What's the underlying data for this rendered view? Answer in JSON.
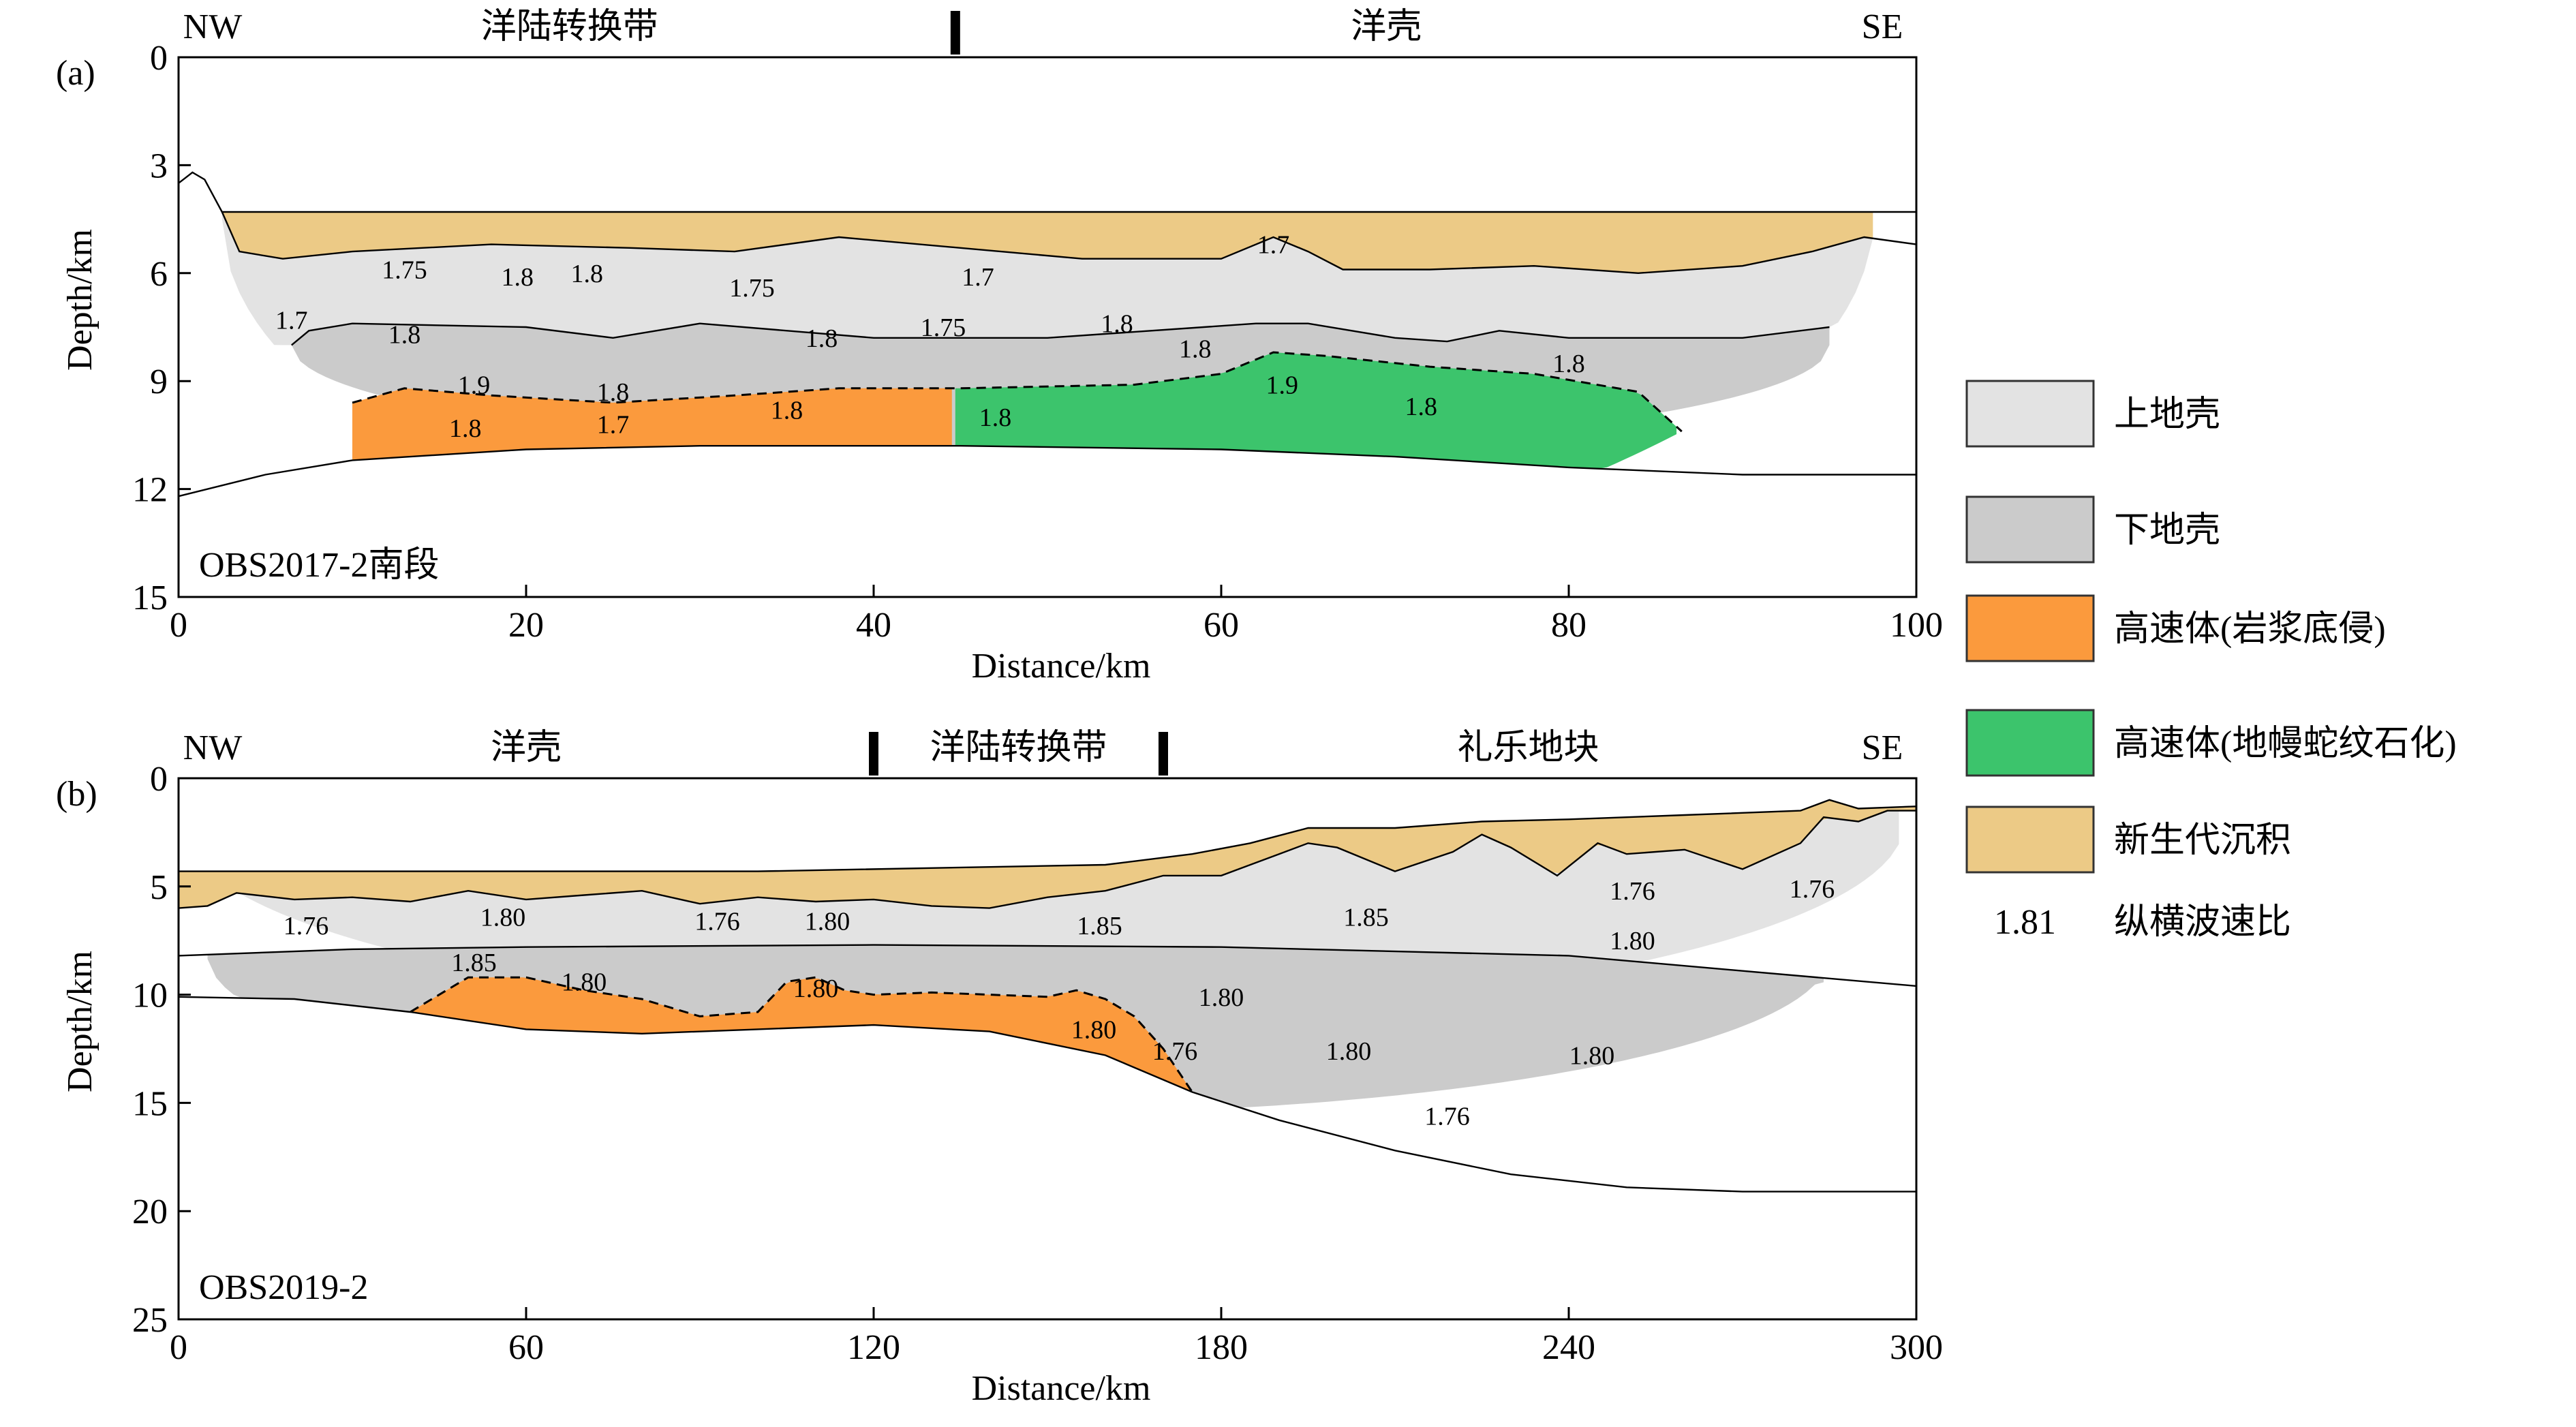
{
  "legend": [
    {
      "key": "upper",
      "label": "上地壳",
      "color": "#e3e3e3"
    },
    {
      "key": "lower",
      "label": "下地壳",
      "color": "#cbcbcb"
    },
    {
      "key": "hv1",
      "label": "高速体(岩浆底侵)",
      "color": "#fb9a3d"
    },
    {
      "key": "hv2",
      "label": "高速体(地幔蛇纹石化)",
      "color": "#3cc46c"
    },
    {
      "key": "sed",
      "label": "新生代沉积",
      "color": "#ecca86"
    }
  ],
  "legend_ratio": {
    "sample": "1.81",
    "label": "纵横波速比"
  },
  "chart_data": [
    {
      "type": "area",
      "panel": "(a)",
      "profile_label": "OBS2017-2南段",
      "xlabel": "Distance/km",
      "ylabel": "Depth/km",
      "xlim": [
        0,
        100
      ],
      "ylim": [
        15,
        0
      ],
      "xticks": [
        0,
        20,
        40,
        60,
        80,
        100
      ],
      "yticks": [
        0,
        3,
        6,
        9,
        12,
        15
      ],
      "direction_left": "NW",
      "direction_right": "SE",
      "zones": [
        {
          "label": "洋陆转换带",
          "x": 22.5
        },
        {
          "label": "洋壳",
          "x": 69.5
        }
      ],
      "zone_markers": [
        44.7
      ],
      "boundaries": {
        "seafloor": [
          [
            0,
            3.5
          ],
          [
            0.8,
            3.2
          ],
          [
            1.5,
            3.4
          ],
          [
            2.5,
            4.3
          ],
          [
            4,
            4.3
          ],
          [
            30,
            4.3
          ],
          [
            60,
            4.3
          ],
          [
            80,
            4.3
          ],
          [
            100,
            4.3
          ]
        ],
        "basement": [
          [
            2.5,
            4.3
          ],
          [
            3.5,
            5.4
          ],
          [
            6,
            5.6
          ],
          [
            10,
            5.4
          ],
          [
            18,
            5.2
          ],
          [
            26,
            5.3
          ],
          [
            32,
            5.4
          ],
          [
            38,
            5.0
          ],
          [
            45,
            5.3
          ],
          [
            52,
            5.6
          ],
          [
            60,
            5.6
          ],
          [
            63,
            5.0
          ],
          [
            65,
            5.4
          ],
          [
            67,
            5.9
          ],
          [
            72,
            5.9
          ],
          [
            78,
            5.8
          ],
          [
            84,
            6.0
          ],
          [
            90,
            5.8
          ],
          [
            94,
            5.4
          ],
          [
            97,
            5.0
          ],
          [
            100,
            5.2
          ]
        ],
        "upper_lower": [
          [
            6.5,
            8.0
          ],
          [
            7.5,
            7.6
          ],
          [
            10,
            7.4
          ],
          [
            20,
            7.5
          ],
          [
            25,
            7.8
          ],
          [
            30,
            7.4
          ],
          [
            40,
            7.8
          ],
          [
            50,
            7.8
          ],
          [
            62,
            7.4
          ],
          [
            65,
            7.4
          ],
          [
            70,
            7.8
          ],
          [
            73,
            7.9
          ],
          [
            76,
            7.6
          ],
          [
            80,
            7.8
          ],
          [
            90,
            7.8
          ],
          [
            95,
            7.5
          ]
        ],
        "moho": [
          [
            0,
            12.2
          ],
          [
            5,
            11.6
          ],
          [
            10,
            11.2
          ],
          [
            20,
            10.9
          ],
          [
            30,
            10.8
          ],
          [
            45,
            10.8
          ],
          [
            60,
            10.9
          ],
          [
            70,
            11.1
          ],
          [
            80,
            11.4
          ],
          [
            90,
            11.6
          ],
          [
            100,
            11.6
          ]
        ],
        "hv_top": [
          [
            10,
            9.6
          ],
          [
            13,
            9.2
          ],
          [
            18,
            9.4
          ],
          [
            25,
            9.6
          ],
          [
            32,
            9.4
          ],
          [
            38,
            9.2
          ],
          [
            45,
            9.2
          ],
          [
            55,
            9.1
          ],
          [
            60,
            8.8
          ],
          [
            63,
            8.2
          ],
          [
            66,
            8.3
          ],
          [
            72,
            8.6
          ],
          [
            78,
            8.8
          ],
          [
            84,
            9.3
          ],
          [
            86.5,
            10.4
          ]
        ]
      },
      "ratios": [
        {
          "v": "1.75",
          "x": 13,
          "y": 5.9
        },
        {
          "v": "1.8",
          "x": 19.5,
          "y": 6.1
        },
        {
          "v": "1.8",
          "x": 23.5,
          "y": 6.0
        },
        {
          "v": "1.75",
          "x": 33,
          "y": 6.4
        },
        {
          "v": "1.7",
          "x": 46,
          "y": 6.1
        },
        {
          "v": "1.7",
          "x": 63,
          "y": 5.2
        },
        {
          "v": "1.7",
          "x": 6.5,
          "y": 7.3
        },
        {
          "v": "1.8",
          "x": 13,
          "y": 7.7
        },
        {
          "v": "1.8",
          "x": 37,
          "y": 7.8
        },
        {
          "v": "1.75",
          "x": 44,
          "y": 7.5
        },
        {
          "v": "1.8",
          "x": 54,
          "y": 7.4
        },
        {
          "v": "1.8",
          "x": 58.5,
          "y": 8.1
        },
        {
          "v": "1.8",
          "x": 80,
          "y": 8.5
        },
        {
          "v": "1.9",
          "x": 17,
          "y": 9.1
        },
        {
          "v": "1.8",
          "x": 25,
          "y": 9.3
        },
        {
          "v": "1.9",
          "x": 63.5,
          "y": 9.1
        },
        {
          "v": "1.8",
          "x": 71.5,
          "y": 9.7
        },
        {
          "v": "1.8",
          "x": 16.5,
          "y": 10.3
        },
        {
          "v": "1.7",
          "x": 25,
          "y": 10.2
        },
        {
          "v": "1.8",
          "x": 35,
          "y": 9.8
        },
        {
          "v": "1.8",
          "x": 47,
          "y": 10.0
        }
      ]
    },
    {
      "type": "area",
      "panel": "(b)",
      "profile_label": "OBS2019-2",
      "xlabel": "Distance/km",
      "ylabel": "Depth/km",
      "xlim": [
        0,
        300
      ],
      "ylim": [
        25,
        0
      ],
      "xticks": [
        0,
        60,
        120,
        180,
        240,
        300
      ],
      "yticks": [
        0,
        5,
        10,
        15,
        20,
        25
      ],
      "direction_left": "NW",
      "direction_right": "SE",
      "zones": [
        {
          "label": "洋壳",
          "x": 60
        },
        {
          "label": "洋陆转换带",
          "x": 145
        },
        {
          "label": "礼乐地块",
          "x": 233
        }
      ],
      "zone_markers": [
        120,
        170
      ],
      "boundaries": {
        "seafloor": [
          [
            0,
            4.3
          ],
          [
            100,
            4.3
          ],
          [
            140,
            4.1
          ],
          [
            160,
            4.0
          ],
          [
            175,
            3.5
          ],
          [
            185,
            3.0
          ],
          [
            195,
            2.3
          ],
          [
            210,
            2.3
          ],
          [
            225,
            2.0
          ],
          [
            240,
            1.9
          ],
          [
            260,
            1.7
          ],
          [
            280,
            1.5
          ],
          [
            285,
            1.0
          ],
          [
            290,
            1.4
          ],
          [
            300,
            1.3
          ]
        ],
        "basement": [
          [
            0,
            6.0
          ],
          [
            5,
            5.9
          ],
          [
            10,
            5.3
          ],
          [
            20,
            5.6
          ],
          [
            30,
            5.5
          ],
          [
            40,
            5.7
          ],
          [
            50,
            5.2
          ],
          [
            60,
            5.6
          ],
          [
            70,
            5.4
          ],
          [
            80,
            5.2
          ],
          [
            90,
            5.8
          ],
          [
            100,
            5.5
          ],
          [
            110,
            5.7
          ],
          [
            120,
            5.6
          ],
          [
            130,
            5.9
          ],
          [
            140,
            6.0
          ],
          [
            150,
            5.5
          ],
          [
            160,
            5.2
          ],
          [
            170,
            4.5
          ],
          [
            180,
            4.5
          ],
          [
            190,
            3.5
          ],
          [
            195,
            3.0
          ],
          [
            200,
            3.2
          ],
          [
            210,
            4.3
          ],
          [
            220,
            3.4
          ],
          [
            225,
            2.6
          ],
          [
            230,
            3.2
          ],
          [
            238,
            4.5
          ],
          [
            245,
            3.0
          ],
          [
            250,
            3.5
          ],
          [
            260,
            3.3
          ],
          [
            270,
            4.2
          ],
          [
            280,
            3.0
          ],
          [
            284,
            1.8
          ],
          [
            290,
            2.0
          ],
          [
            295,
            1.5
          ],
          [
            300,
            1.5
          ]
        ],
        "upper_lower": [
          [
            0,
            8.2
          ],
          [
            30,
            7.9
          ],
          [
            60,
            7.8
          ],
          [
            120,
            7.7
          ],
          [
            180,
            7.8
          ],
          [
            240,
            8.2
          ],
          [
            270,
            8.9
          ],
          [
            300,
            9.6
          ]
        ],
        "moho": [
          [
            0,
            10.1
          ],
          [
            20,
            10.2
          ],
          [
            40,
            10.8
          ],
          [
            60,
            11.6
          ],
          [
            80,
            11.8
          ],
          [
            100,
            11.6
          ],
          [
            120,
            11.4
          ],
          [
            140,
            11.7
          ],
          [
            160,
            12.8
          ],
          [
            175,
            14.5
          ],
          [
            190,
            15.8
          ],
          [
            210,
            17.2
          ],
          [
            230,
            18.3
          ],
          [
            250,
            18.9
          ],
          [
            270,
            19.1
          ],
          [
            300,
            19.1
          ]
        ],
        "hv_top": [
          [
            40,
            10.8
          ],
          [
            50,
            9.2
          ],
          [
            60,
            9.2
          ],
          [
            70,
            9.8
          ],
          [
            80,
            10.2
          ],
          [
            90,
            11.0
          ],
          [
            100,
            10.8
          ],
          [
            105,
            9.4
          ],
          [
            110,
            9.2
          ],
          [
            115,
            9.8
          ],
          [
            120,
            10.0
          ],
          [
            130,
            9.9
          ],
          [
            140,
            10.0
          ],
          [
            150,
            10.1
          ],
          [
            155,
            9.8
          ],
          [
            160,
            10.2
          ],
          [
            165,
            11.0
          ],
          [
            170,
            12.5
          ],
          [
            175,
            14.5
          ]
        ]
      },
      "ratios": [
        {
          "v": "1.76",
          "x": 22,
          "y": 6.8
        },
        {
          "v": "1.80",
          "x": 56,
          "y": 6.4
        },
        {
          "v": "1.76",
          "x": 93,
          "y": 6.6
        },
        {
          "v": "1.80",
          "x": 112,
          "y": 6.6
        },
        {
          "v": "1.85",
          "x": 159,
          "y": 6.8
        },
        {
          "v": "1.85",
          "x": 205,
          "y": 6.4
        },
        {
          "v": "1.76",
          "x": 251,
          "y": 5.2
        },
        {
          "v": "1.76",
          "x": 282,
          "y": 5.1
        },
        {
          "v": "1.80",
          "x": 251,
          "y": 7.5
        },
        {
          "v": "1.85",
          "x": 51,
          "y": 8.5
        },
        {
          "v": "1.80",
          "x": 70,
          "y": 9.4
        },
        {
          "v": "1.80",
          "x": 110,
          "y": 9.7
        },
        {
          "v": "1.80",
          "x": 180,
          "y": 10.1
        },
        {
          "v": "1.80",
          "x": 158,
          "y": 11.6
        },
        {
          "v": "1.76",
          "x": 172,
          "y": 12.6
        },
        {
          "v": "1.80",
          "x": 202,
          "y": 12.6
        },
        {
          "v": "1.80",
          "x": 244,
          "y": 12.8
        },
        {
          "v": "1.76",
          "x": 219,
          "y": 15.6
        }
      ]
    }
  ]
}
